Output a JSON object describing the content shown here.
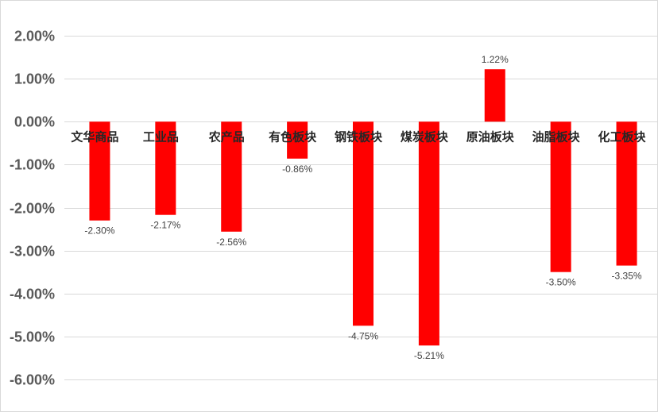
{
  "chart_data": {
    "type": "bar",
    "categories": [
      "文华商品",
      "工业品",
      "农产品",
      "有色板块",
      "钢铁板块",
      "煤炭板块",
      "原油板块",
      "油脂板块",
      "化工板块"
    ],
    "values": [
      -2.3,
      -2.17,
      -2.56,
      -0.86,
      -4.75,
      -5.21,
      1.22,
      -3.5,
      -3.35
    ],
    "data_labels": [
      "-2.30%",
      "-2.17%",
      "-2.56%",
      "-0.86%",
      "-4.75%",
      "-5.21%",
      "1.22%",
      "-3.50%",
      "-3.35%"
    ],
    "y_ticks": [
      2,
      1,
      0,
      -1,
      -2,
      -3,
      -4,
      -5,
      -6
    ],
    "y_tick_labels": [
      "2.00%",
      "1.00%",
      "0.00%",
      "-1.00%",
      "-2.00%",
      "-3.00%",
      "-4.00%",
      "-5.00%",
      "-6.00%"
    ],
    "ylim": [
      -6,
      2
    ],
    "grid": true,
    "legend": "none",
    "bar_color": "#ff0000",
    "title": "",
    "xlabel": "",
    "ylabel": ""
  }
}
